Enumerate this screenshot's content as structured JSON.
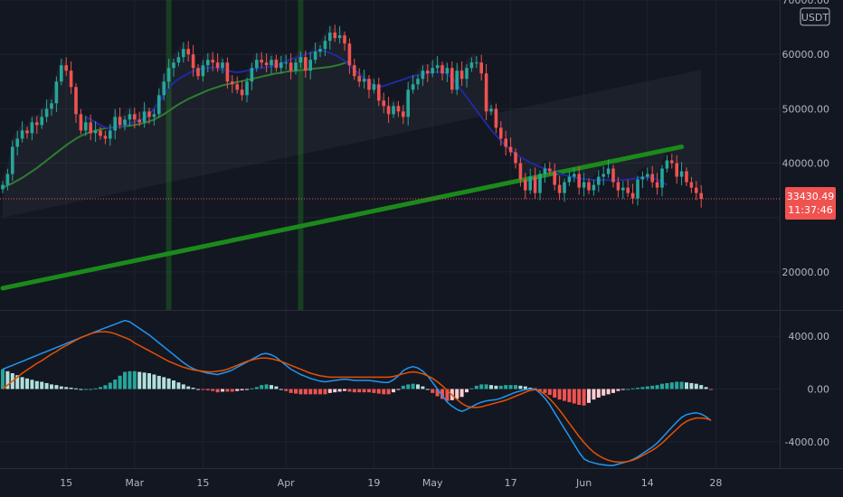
{
  "colors": {
    "background": "#131722",
    "grid": "#1e222d",
    "axis_text": "#b2b5be",
    "candle_up": "#26a69a",
    "candle_down": "#ef5350",
    "ma_short": "#1f2a9e",
    "ma_mid": "#2e7d32",
    "ma_long": "#1b8a1b",
    "macd_line": "#2196f3",
    "signal_line": "#e65100",
    "hist_up_strong": "#26a69a",
    "hist_up_weak": "#b2dfdb",
    "hist_down_strong": "#ef5350",
    "hist_down_weak": "#ffcdd2",
    "price_line": "#ef5350",
    "highlight": "#1b5e20"
  },
  "chart_data": [
    {
      "type": "candlestick",
      "title": "",
      "quote_currency": "USDT",
      "ylim": [
        13000,
        70000
      ],
      "y_ticks": [
        20000,
        30000,
        40000,
        50000,
        60000,
        70000
      ],
      "y_tick_labels": [
        "20000.00",
        "",
        "40000.00",
        "50000.00",
        "60000.00",
        "70000.00"
      ],
      "x_ticks": [
        {
          "day": 13,
          "label": "15"
        },
        {
          "day": 27,
          "label": "Mar"
        },
        {
          "day": 41,
          "label": "15"
        },
        {
          "day": 58,
          "label": "Apr"
        },
        {
          "day": 76,
          "label": "19"
        },
        {
          "day": 88,
          "label": "May"
        },
        {
          "day": 104,
          "label": "17"
        },
        {
          "day": 119,
          "label": "Jun"
        },
        {
          "day": 132,
          "label": "14"
        },
        {
          "day": 146,
          "label": "28"
        }
      ],
      "highlight_days": [
        34,
        61
      ],
      "last_price": {
        "value": 33430.49,
        "label": "33430.49",
        "countdown": "11:37:46"
      },
      "closes": [
        36000,
        38000,
        43000,
        44500,
        46000,
        45500,
        47500,
        47000,
        48500,
        50000,
        51000,
        55000,
        58000,
        57000,
        54000,
        49000,
        46000,
        47500,
        45500,
        46000,
        45000,
        44500,
        46000,
        48500,
        47000,
        48000,
        49000,
        48000,
        47500,
        49500,
        48500,
        49000,
        52500,
        55000,
        57500,
        58500,
        59500,
        61000,
        60000,
        57500,
        56000,
        58000,
        59000,
        58500,
        57500,
        58500,
        55000,
        54500,
        53500,
        52500,
        55000,
        57500,
        59000,
        58500,
        58000,
        59000,
        57500,
        58500,
        58500,
        57000,
        58500,
        59500,
        57000,
        59000,
        60500,
        61000,
        62500,
        64000,
        63000,
        63500,
        62000,
        58000,
        56000,
        55000,
        55500,
        53500,
        54500,
        51500,
        50500,
        49000,
        50500,
        49500,
        48500,
        53500,
        54500,
        55500,
        57000,
        56500,
        57500,
        58000,
        56500,
        57500,
        53500,
        57000,
        55500,
        57500,
        58500,
        58500,
        56500,
        49500,
        50000,
        46500,
        44500,
        43000,
        42000,
        40000,
        37000,
        35000,
        37500,
        34500,
        38000,
        39000,
        38500,
        36000,
        34500,
        36500,
        37500,
        38000,
        35500,
        36500,
        35000,
        36000,
        37500,
        38000,
        39000,
        36500,
        35000,
        35500,
        34500,
        33500,
        37000,
        37500,
        38000,
        36500,
        35500,
        39000,
        40500,
        40000,
        37500,
        38500,
        36500,
        35500,
        34500,
        33430.49
      ],
      "ma_short": {
        "start_day": 17,
        "values": [
          48500,
          48000,
          47500,
          47000,
          46600,
          46400,
          46500,
          46700,
          47000,
          47300,
          47600,
          47900,
          48200,
          49000,
          50000,
          51200,
          52500,
          53800,
          54800,
          55500,
          56000,
          56500,
          56900,
          57200,
          57400,
          57500,
          57600,
          57400,
          57200,
          57000,
          56800,
          56700,
          56800,
          57000,
          57200,
          57400,
          57500,
          57600,
          57800,
          58000,
          58300,
          58700,
          59100,
          59400,
          59700,
          60000,
          60300,
          60500,
          60700,
          60600,
          60300,
          59900,
          59400,
          58800,
          58000,
          57200,
          56400,
          55600,
          54800,
          54300,
          54000,
          54200,
          54500,
          54800,
          55100,
          55400,
          55700,
          56000,
          56200,
          56400,
          56600,
          56700,
          56800,
          56700,
          56400,
          55700,
          54600,
          53300,
          52100,
          50900,
          49700,
          48500,
          47300,
          46100,
          45100,
          44100,
          43200,
          42400,
          41700,
          41100,
          40600,
          40100,
          39700,
          39300,
          39000,
          38700,
          38400,
          38100,
          37800,
          37600,
          37400,
          37200,
          37100,
          37000,
          36900,
          36900,
          36900,
          36900,
          36900,
          36900,
          36900,
          37000,
          37100,
          37300,
          37400,
          37400,
          37300,
          37000,
          36500,
          36000
        ]
      },
      "ma_mid": {
        "start_day": 0,
        "values": [
          35500,
          35900,
          36300,
          36800,
          37300,
          37900,
          38500,
          39100,
          39800,
          40500,
          41200,
          41900,
          42600,
          43300,
          43900,
          44500,
          45000,
          45400,
          45700,
          46000,
          46200,
          46400,
          46500,
          46600,
          46700,
          46800,
          46900,
          47000,
          47200,
          47400,
          47700,
          48000,
          48500,
          49000,
          49600,
          50200,
          50800,
          51300,
          51800,
          52200,
          52600,
          53000,
          53400,
          53700,
          54000,
          54300,
          54500,
          54700,
          54900,
          55100,
          55300,
          55500,
          55700,
          55900,
          56100,
          56300,
          56500,
          56600,
          56800,
          56900,
          57000,
          57100,
          57200,
          57300,
          57400,
          57500,
          57600,
          57700,
          57900,
          58100,
          58400,
          58700
        ]
      },
      "ma_long": {
        "start": [
          0,
          17000
        ],
        "end": [
          139,
          43000
        ]
      }
    },
    {
      "type": "macd",
      "ylim": [
        -6000,
        6000
      ],
      "y_ticks": [
        4000,
        0,
        -4000
      ],
      "y_tick_labels": [
        "4000.00",
        "0.00",
        "-4000.00"
      ],
      "macd": [
        1500,
        1650,
        1800,
        1950,
        2100,
        2250,
        2400,
        2550,
        2700,
        2850,
        3000,
        3150,
        3300,
        3450,
        3600,
        3750,
        3900,
        4050,
        4200,
        4350,
        4500,
        4640,
        4780,
        4920,
        5060,
        5200,
        5100,
        4850,
        4600,
        4350,
        4100,
        3800,
        3500,
        3200,
        2900,
        2600,
        2300,
        2000,
        1750,
        1550,
        1400,
        1300,
        1200,
        1150,
        1100,
        1200,
        1300,
        1450,
        1650,
        1850,
        2050,
        2250,
        2450,
        2650,
        2700,
        2600,
        2400,
        2100,
        1800,
        1500,
        1300,
        1100,
        950,
        800,
        700,
        600,
        550,
        600,
        650,
        700,
        750,
        700,
        650,
        650,
        650,
        650,
        600,
        550,
        500,
        500,
        700,
        1000,
        1400,
        1600,
        1700,
        1600,
        1350,
        1000,
        500,
        0,
        -500,
        -1000,
        -1300,
        -1550,
        -1700,
        -1550,
        -1350,
        -1150,
        -1000,
        -900,
        -850,
        -800,
        -700,
        -550,
        -400,
        -250,
        -150,
        -50,
        0,
        0,
        -300,
        -700,
        -1200,
        -1800,
        -2400,
        -3000,
        -3600,
        -4200,
        -4800,
        -5300,
        -5500,
        -5600,
        -5700,
        -5750,
        -5800,
        -5800,
        -5700,
        -5600,
        -5500,
        -5350,
        -5150,
        -4900,
        -4650,
        -4400,
        -4100,
        -3700,
        -3300,
        -2900,
        -2500,
        -2150,
        -1950,
        -1850,
        -1800,
        -1900,
        -2100,
        -2400
      ],
      "signal": [
        0,
        300,
        600,
        900,
        1200,
        1450,
        1700,
        1950,
        2150,
        2400,
        2650,
        2850,
        3100,
        3300,
        3500,
        3700,
        3900,
        4050,
        4200,
        4300,
        4350,
        4350,
        4300,
        4200,
        4050,
        3900,
        3750,
        3500,
        3300,
        3100,
        2900,
        2700,
        2500,
        2300,
        2100,
        1950,
        1800,
        1650,
        1550,
        1450,
        1400,
        1350,
        1300,
        1300,
        1350,
        1400,
        1500,
        1650,
        1800,
        1950,
        2100,
        2200,
        2300,
        2350,
        2350,
        2300,
        2200,
        2100,
        1950,
        1800,
        1650,
        1500,
        1350,
        1200,
        1100,
        1000,
        950,
        900,
        900,
        900,
        900,
        900,
        900,
        900,
        900,
        900,
        900,
        900,
        900,
        900,
        950,
        1050,
        1150,
        1250,
        1300,
        1250,
        1150,
        1000,
        800,
        550,
        250,
        -100,
        -450,
        -800,
        -1100,
        -1300,
        -1400,
        -1400,
        -1350,
        -1250,
        -1150,
        -1050,
        -950,
        -850,
        -700,
        -550,
        -400,
        -250,
        -100,
        -50,
        -150,
        -400,
        -750,
        -1150,
        -1600,
        -2100,
        -2600,
        -3100,
        -3600,
        -4050,
        -4450,
        -4800,
        -5050,
        -5250,
        -5400,
        -5500,
        -5550,
        -5550,
        -5500,
        -5400,
        -5250,
        -5050,
        -4850,
        -4650,
        -4400,
        -4100,
        -3750,
        -3400,
        -3050,
        -2700,
        -2450,
        -2300,
        -2200,
        -2200,
        -2250,
        -2350
      ]
    }
  ]
}
